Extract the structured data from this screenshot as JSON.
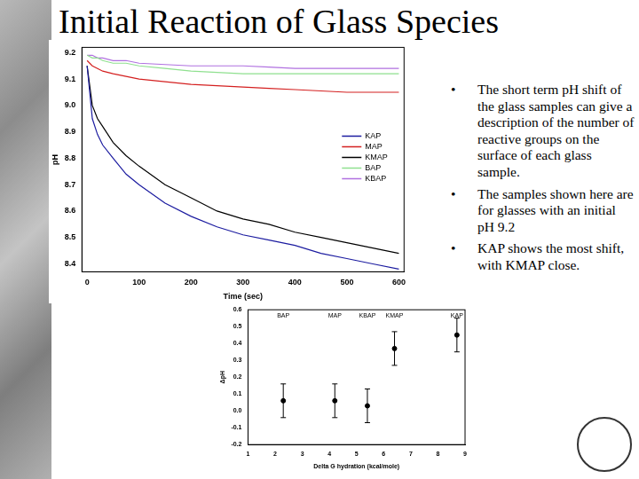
{
  "title": "Initial Reaction of Glass Species",
  "bullets": [
    "The short term pH shift of the glass samples can give a description of the number of reactive groups on the surface of each glass sample.",
    "The samples shown here are for glasses with an initial pH 9.2",
    "KAP shows the most shift, with KMAP close."
  ],
  "chart_data": [
    {
      "type": "line",
      "x_label": "Time (sec)",
      "y_label": "pH",
      "x": [
        0,
        10,
        20,
        30,
        50,
        75,
        100,
        150,
        200,
        250,
        300,
        350,
        400,
        450,
        500,
        550,
        600
      ],
      "series": [
        {
          "name": "KAP",
          "color": "#1c1ca0",
          "values": [
            9.15,
            8.95,
            8.89,
            8.85,
            8.8,
            8.74,
            8.7,
            8.63,
            8.58,
            8.54,
            8.51,
            8.49,
            8.47,
            8.44,
            8.42,
            8.4,
            8.38
          ]
        },
        {
          "name": "MAP",
          "color": "#d42020",
          "values": [
            9.17,
            9.15,
            9.14,
            9.13,
            9.12,
            9.11,
            9.1,
            9.09,
            9.08,
            9.075,
            9.07,
            9.065,
            9.06,
            9.055,
            9.05,
            9.05,
            9.05
          ]
        },
        {
          "name": "KMAP",
          "color": "#000000",
          "values": [
            9.15,
            9.0,
            8.95,
            8.92,
            8.86,
            8.81,
            8.77,
            8.7,
            8.65,
            8.6,
            8.57,
            8.55,
            8.52,
            8.5,
            8.48,
            8.46,
            8.44
          ]
        },
        {
          "name": "BAP",
          "color": "#8fe08f",
          "values": [
            9.19,
            9.18,
            9.18,
            9.17,
            9.16,
            9.16,
            9.15,
            9.14,
            9.13,
            9.125,
            9.12,
            9.12,
            9.12,
            9.12,
            9.12,
            9.12,
            9.12
          ]
        },
        {
          "name": "KBAP",
          "color": "#b070e0",
          "values": [
            9.19,
            9.19,
            9.18,
            9.18,
            9.17,
            9.17,
            9.16,
            9.155,
            9.15,
            9.15,
            9.15,
            9.145,
            9.14,
            9.14,
            9.14,
            9.14,
            9.14
          ]
        }
      ],
      "xlim": [
        -10,
        610
      ],
      "xticks": [
        0,
        100,
        200,
        300,
        400,
        500,
        600
      ],
      "ylim": [
        8.37,
        9.22
      ],
      "yticks": [
        8.4,
        8.5,
        8.6,
        8.7,
        8.8,
        8.9,
        {
          "value": 9,
          "label": "9.0"
        },
        9.1,
        9.2
      ],
      "grid": false,
      "legend": "right"
    },
    {
      "type": "scatter",
      "x_label": "Delta G hydration (kcal/mole)",
      "y_label": "ΔpH",
      "categories": [
        "BAP",
        "MAP",
        "KBAP",
        "KMAP",
        "KAP"
      ],
      "x": [
        2.3,
        4.2,
        5.4,
        6.4,
        8.7
      ],
      "values": [
        0.06,
        0.06,
        0.03,
        0.37,
        0.45
      ],
      "errors": [
        0.1,
        0.1,
        0.1,
        0.1,
        0.1
      ],
      "color": "#000000",
      "marker": "circle",
      "xlim": [
        1,
        9
      ],
      "xticks": [
        1,
        2,
        3,
        4,
        5,
        6,
        7,
        8,
        9
      ],
      "ylim": [
        -0.2,
        0.6
      ],
      "yticks": [
        -0.2,
        -0.1,
        {
          "value": 0,
          "label": "0.0"
        },
        0.1,
        0.2,
        0.3,
        0.4,
        0.5,
        0.6
      ],
      "grid": false
    }
  ]
}
